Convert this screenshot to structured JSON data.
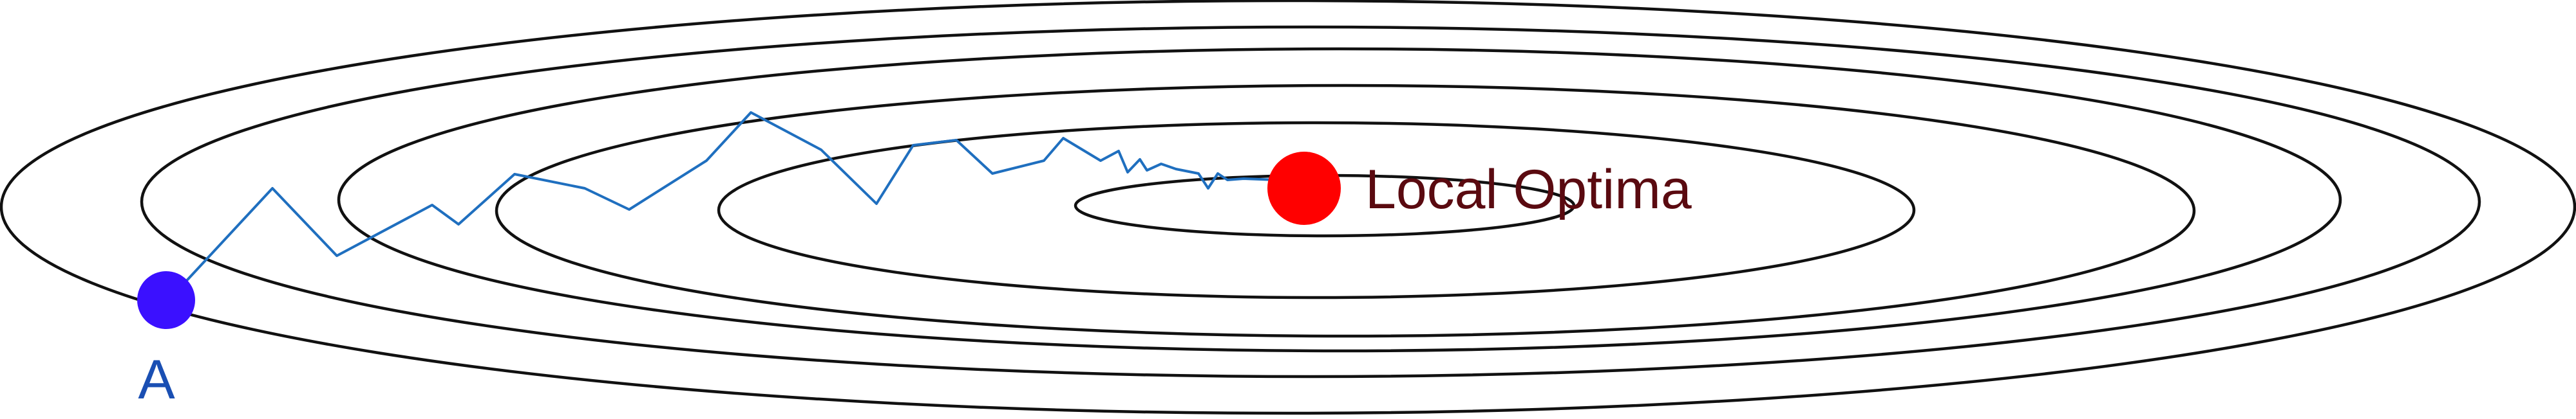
{
  "diagram": {
    "contour_count": 6,
    "start_point": {
      "label": "A"
    },
    "optimum_point": {
      "label": "Local Optima"
    }
  },
  "colors": {
    "contour": "#111111",
    "path": "#1f6fbf",
    "start_point": "#3b10ff",
    "start_label": "#1a4fb3",
    "optimum_point": "#ff0000",
    "optimum_label": "#5a0a10"
  }
}
